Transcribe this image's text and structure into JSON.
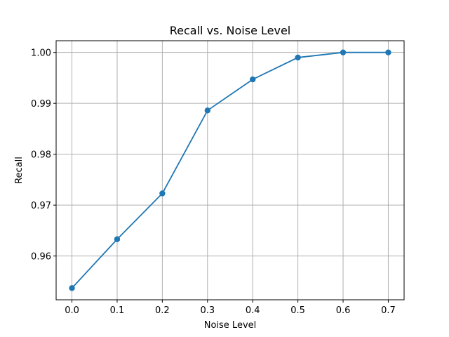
{
  "chart_data": {
    "type": "line",
    "title": "Recall vs. Noise Level",
    "xlabel": "Noise Level",
    "ylabel": "Recall",
    "x": [
      0.0,
      0.1,
      0.2,
      0.3,
      0.4,
      0.5,
      0.6,
      0.7
    ],
    "series": [
      {
        "values": [
          0.9537,
          0.9633,
          0.9723,
          0.9886,
          0.9947,
          0.999,
          1.0,
          1.0
        ],
        "color": "#1f77b4"
      }
    ],
    "xlim": [
      -0.035,
      0.735
    ],
    "ylim": [
      0.9514,
      1.0023
    ],
    "x_ticks": [
      "0.0",
      "0.1",
      "0.2",
      "0.3",
      "0.4",
      "0.5",
      "0.6",
      "0.7"
    ],
    "y_ticks": [
      "0.96",
      "0.97",
      "0.98",
      "0.99",
      "1.00"
    ],
    "grid": true,
    "marker": "circle",
    "legend": "none"
  }
}
